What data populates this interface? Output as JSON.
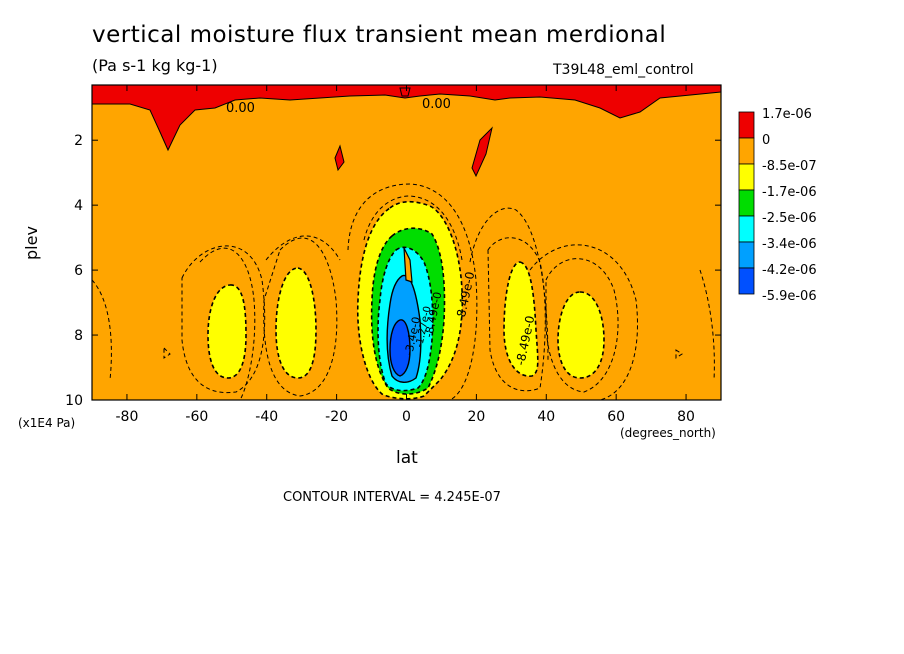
{
  "chart_data": {
    "type": "heatmap",
    "title": "vertical moisture flux transient mean merdional",
    "units": "(Pa s-1 kg kg-1)",
    "run_label": "T39L48_eml_control",
    "xlabel": "lat",
    "x_unit": "(degrees_north)",
    "ylabel": "plev",
    "y_unit": "(x1E4 Pa)",
    "xlim": [
      -90,
      90
    ],
    "ylim": [
      10,
      0.3
    ],
    "x_ticks": [
      "-80",
      "-60",
      "-40",
      "-20",
      "0",
      "20",
      "40",
      "60",
      "80"
    ],
    "x_tick_values": [
      -80,
      -60,
      -40,
      -20,
      0,
      20,
      40,
      60,
      80
    ],
    "y_ticks": [
      "2",
      "4",
      "6",
      "8",
      "10"
    ],
    "y_tick_values": [
      2,
      4,
      6,
      8,
      10
    ],
    "legend": {
      "labels": [
        "1.7e-06",
        "0",
        "-8.5e-07",
        "-1.7e-06",
        "-2.5e-06",
        "-3.4e-06",
        "-4.2e-06",
        "-5.9e-06"
      ],
      "colors": [
        "#ee0000",
        "#ffa500",
        "#ffff00",
        "#00dd00",
        "#00ffff",
        "#00a0ff",
        "#0050ff"
      ]
    },
    "contour_labels": [
      "0.00",
      "0.00",
      "-8.49e-0",
      "-8.49e-0",
      "-8.49e-0",
      "-3.4e-0",
      "-1.27e-0"
    ],
    "contour_interval_text": "CONTOUR INTERVAL = 4.245E-07"
  }
}
